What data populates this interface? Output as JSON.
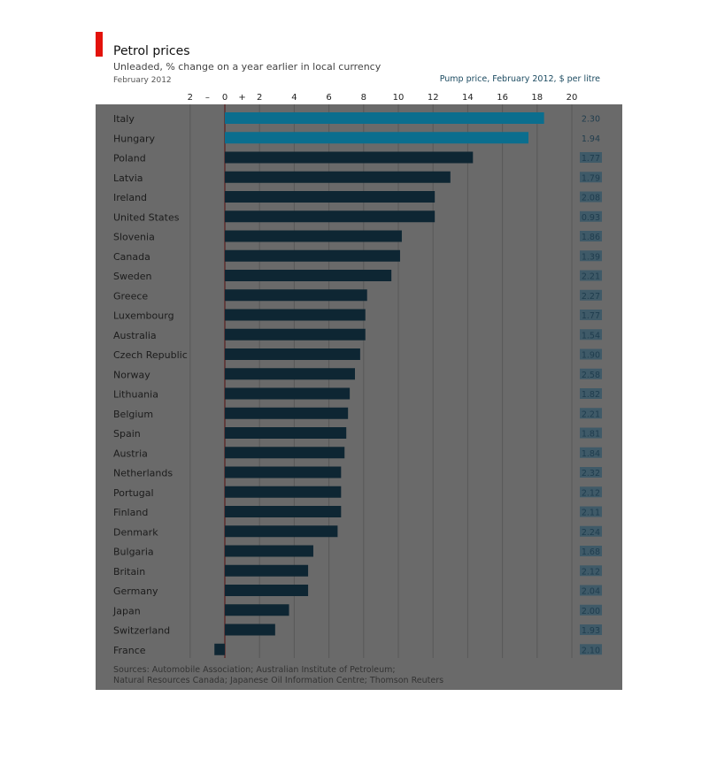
{
  "chart_data": {
    "type": "bar",
    "orientation": "horizontal",
    "title": "Petrol prices",
    "subtitle": "Unleaded, % change on a year earlier in local currency",
    "date_label": "February 2012",
    "secondary_column_label": "Pump price, February 2012, $ per litre",
    "x_ticks": [
      "2",
      "–",
      "0",
      "+",
      "2",
      "4",
      "6",
      "8",
      "10",
      "12",
      "14",
      "16",
      "18",
      "20"
    ],
    "xlim": [
      -2,
      20
    ],
    "grid": true,
    "categories": [
      "Italy",
      "Hungary",
      "Poland",
      "Latvia",
      "Ireland",
      "United States",
      "Slovenia",
      "Canada",
      "Sweden",
      "Greece",
      "Luxembourg",
      "Australia",
      "Czech Republic",
      "Norway",
      "Lithuania",
      "Belgium",
      "Spain",
      "Austria",
      "Netherlands",
      "Portugal",
      "Finland",
      "Denmark",
      "Bulgaria",
      "Britain",
      "Germany",
      "Japan",
      "Switzerland",
      "France"
    ],
    "values": [
      18.4,
      17.5,
      14.3,
      13.0,
      12.1,
      12.1,
      10.2,
      10.1,
      9.6,
      8.2,
      8.1,
      8.1,
      7.8,
      7.5,
      7.2,
      7.1,
      7.0,
      6.9,
      6.7,
      6.7,
      6.7,
      6.5,
      5.1,
      4.8,
      4.8,
      3.7,
      2.9,
      -0.6
    ],
    "pump_prices": [
      "2.30",
      "1.94",
      "1.77",
      "1.79",
      "2.08",
      "0.93",
      "1.86",
      "1.39",
      "2.21",
      "2.27",
      "1.77",
      "1.54",
      "1.90",
      "2.58",
      "1.82",
      "2.21",
      "1.81",
      "1.84",
      "2.32",
      "2.12",
      "2.11",
      "2.24",
      "1.68",
      "2.12",
      "2.04",
      "2.00",
      "1.93",
      "2.10"
    ],
    "highlight_count": 2,
    "sources": [
      "Sources: Automobile Association; Australian Institute of Petroleum;",
      "Natural Resources Canada; Japanese Oil Information Centre; Thomson Reuters"
    ]
  },
  "colors": {
    "panel": "#6a6a6a",
    "header": "#ffffff",
    "brand_red": "#e3120b",
    "bar": "#0e2633",
    "bar_highlight": "#0b6e8e",
    "price_box": "#3f5a68",
    "grid": "#585858",
    "zero_line": "#5a2020"
  }
}
